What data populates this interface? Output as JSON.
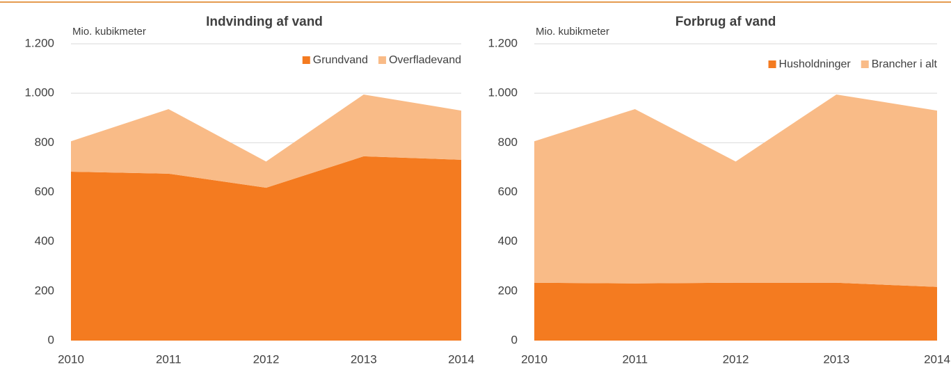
{
  "chart_data": [
    {
      "type": "stacked_area",
      "title": "Indvinding af vand",
      "y_label": "Mio. kubikmeter",
      "categories": [
        "2010",
        "2011",
        "2012",
        "2013",
        "2014"
      ],
      "series": [
        {
          "name": "Grundvand",
          "color": "#f47b20",
          "values": [
            683,
            675,
            618,
            745,
            731
          ]
        },
        {
          "name": "Overfladevand",
          "color": "#f9bb87",
          "values": [
            123,
            261,
            106,
            250,
            199
          ]
        }
      ],
      "ylim": [
        0,
        1200
      ],
      "yticks": [
        0,
        200,
        400,
        600,
        800,
        {
          "value": 1000,
          "label": "1.000"
        },
        {
          "value": 1200,
          "label": "1.200"
        }
      ],
      "grid": true,
      "legend": "top-right"
    },
    {
      "type": "stacked_area",
      "title": "Forbrug af vand",
      "y_label": "Mio. kubikmeter",
      "categories": [
        "2010",
        "2011",
        "2012",
        "2013",
        "2014"
      ],
      "series": [
        {
          "name": "Husholdninger",
          "color": "#f47b20",
          "values": [
            234,
            231,
            234,
            234,
            217
          ]
        },
        {
          "name": "Brancher i alt",
          "color": "#f9bb87",
          "values": [
            572,
            705,
            490,
            761,
            713
          ]
        }
      ],
      "ylim": [
        0,
        1200
      ],
      "yticks": [
        0,
        200,
        400,
        600,
        800,
        {
          "value": 1000,
          "label": "1.000"
        },
        {
          "value": 1200,
          "label": "1.200"
        }
      ],
      "grid": true,
      "legend": "top-right"
    }
  ]
}
